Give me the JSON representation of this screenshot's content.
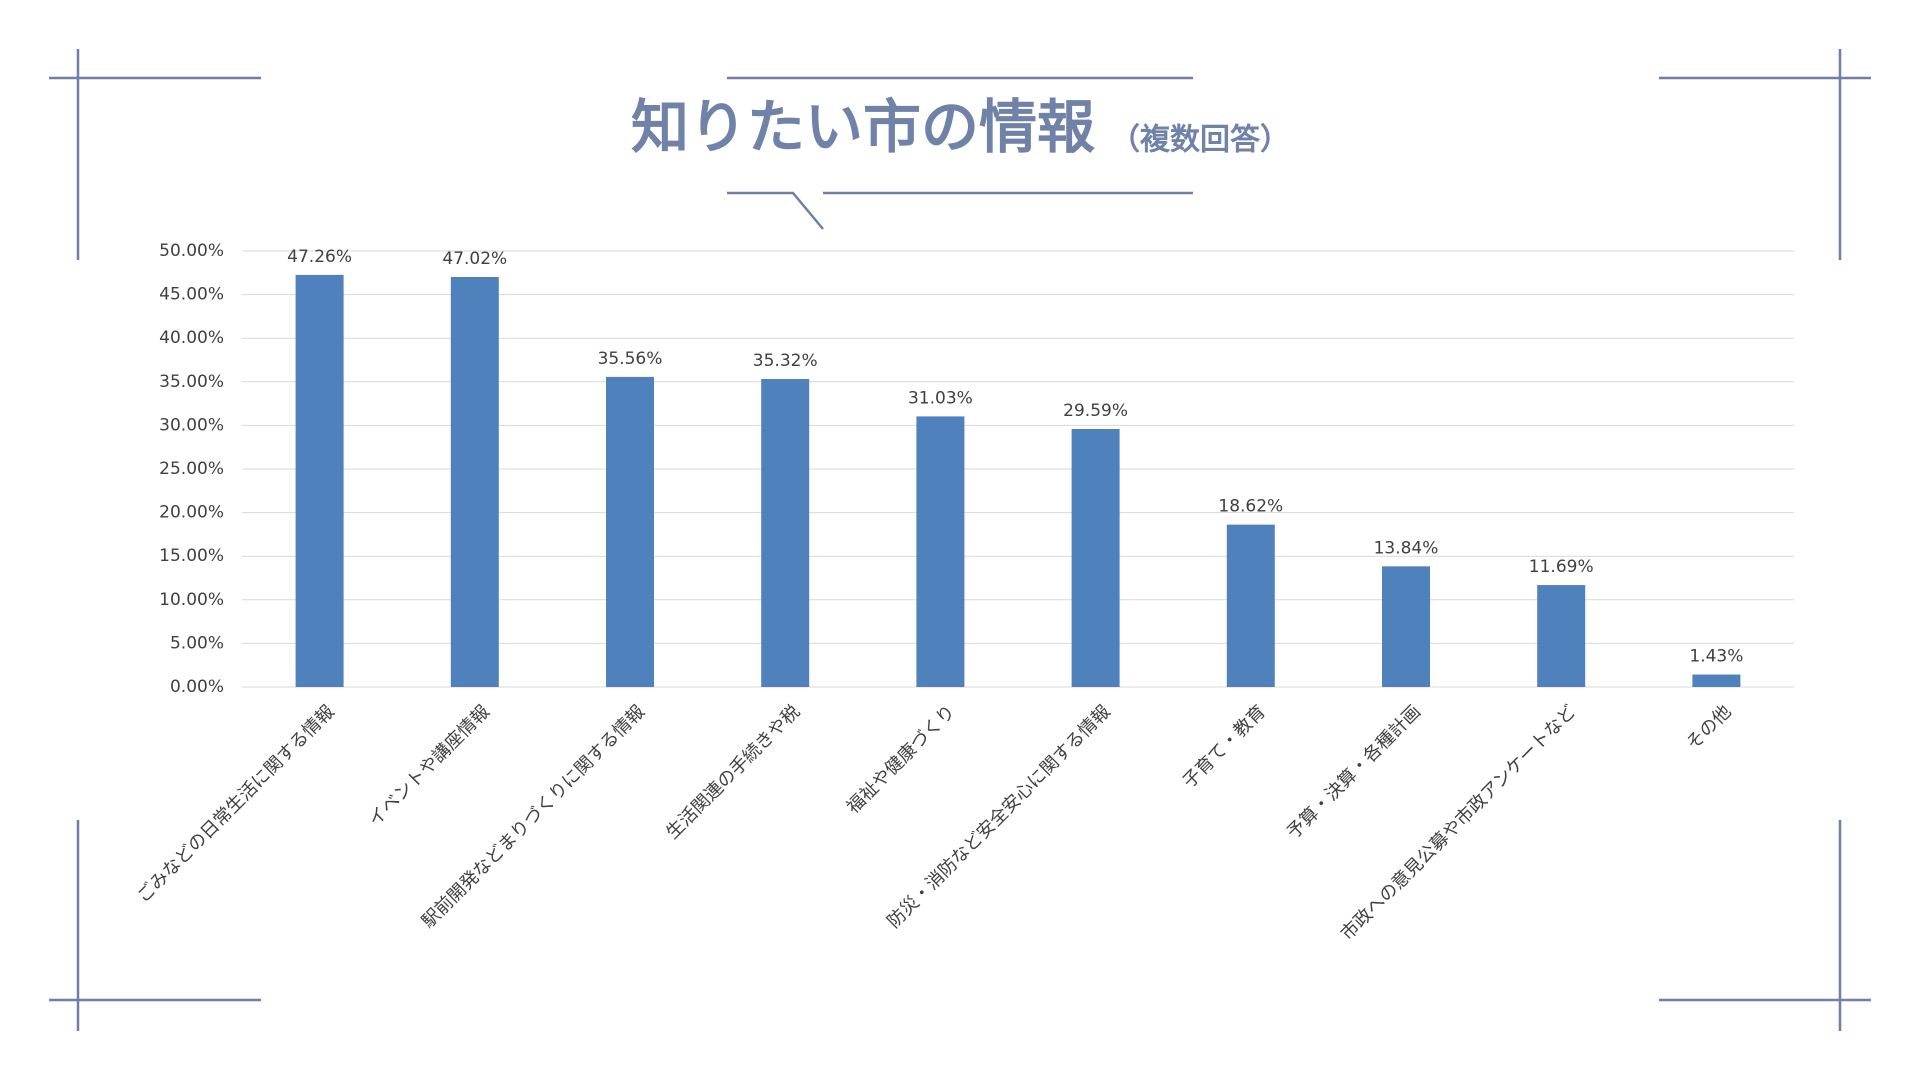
{
  "chart_data": {
    "type": "bar",
    "title": "知りたい市の情報",
    "subtitle": "（複数回答）",
    "categories": [
      "ごみなどの日常生活に関する情報",
      "イベントや講座情報",
      "駅前開発などまりづくりに関する情報",
      "生活関連の手続きや税",
      "福祉や健康づくり",
      "防災・消防など安全安心に関する情報",
      "子育て・教育",
      "予算・決算・各種計画",
      "市政への意見公募や市政アンケートなど",
      "その他"
    ],
    "values": [
      47.26,
      47.02,
      35.56,
      35.32,
      31.03,
      29.59,
      18.62,
      13.84,
      11.69,
      1.43
    ],
    "value_labels": [
      "47.26%",
      "47.02%",
      "35.56%",
      "35.32%",
      "31.03%",
      "29.59%",
      "18.62%",
      "13.84%",
      "11.69%",
      "1.43%"
    ],
    "color": "#4f81bd",
    "ylim": [
      0,
      50
    ],
    "yticks": [
      {
        "value": 0,
        "label": "0.00%"
      },
      {
        "value": 5,
        "label": "5.00%"
      },
      {
        "value": 10,
        "label": "10.00%"
      },
      {
        "value": 15,
        "label": "15.00%"
      },
      {
        "value": 20,
        "label": "20.00%"
      },
      {
        "value": 25,
        "label": "25.00%"
      },
      {
        "value": 30,
        "label": "30.00%"
      },
      {
        "value": 35,
        "label": "35.00%"
      },
      {
        "value": 40,
        "label": "40.00%"
      },
      {
        "value": 45,
        "label": "45.00%"
      },
      {
        "value": 50,
        "label": "50.00%"
      }
    ],
    "grid": true
  }
}
